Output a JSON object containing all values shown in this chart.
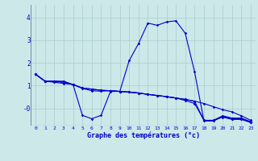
{
  "xlabel": "Graphe des températures (°c)",
  "bg_color": "#cce8e8",
  "grid_color": "#aacece",
  "line_color": "#0000cc",
  "text_color": "#0000cc",
  "xlim": [
    -0.5,
    23.5
  ],
  "ylim": [
    -0.75,
    4.55
  ],
  "yticks": [
    0,
    1,
    2,
    3,
    4
  ],
  "ytick_labels": [
    "-0",
    "1",
    "2",
    "3",
    "4"
  ],
  "xticks": [
    0,
    1,
    2,
    3,
    4,
    5,
    6,
    7,
    8,
    9,
    10,
    11,
    12,
    13,
    14,
    15,
    16,
    17,
    18,
    19,
    20,
    21,
    22,
    23
  ],
  "series": [
    {
      "x": [
        0,
        1,
        2,
        3,
        4,
        5,
        6,
        7,
        8,
        9,
        10,
        11,
        12,
        13,
        14,
        15,
        16,
        17,
        18,
        19,
        20,
        21,
        22,
        23
      ],
      "y": [
        1.5,
        1.2,
        1.2,
        1.2,
        1.05,
        -0.3,
        -0.45,
        -0.3,
        0.75,
        0.75,
        2.1,
        2.85,
        3.75,
        3.65,
        3.8,
        3.85,
        3.3,
        1.6,
        -0.55,
        -0.55,
        -0.35,
        -0.45,
        -0.45,
        -0.6
      ]
    },
    {
      "x": [
        0,
        1,
        2,
        3,
        4,
        5,
        6,
        7,
        8,
        9,
        10,
        11,
        12,
        13,
        14,
        15,
        16,
        17,
        18,
        19,
        20,
        21,
        22,
        23
      ],
      "y": [
        1.5,
        1.2,
        1.2,
        1.15,
        1.05,
        0.9,
        0.85,
        0.8,
        0.78,
        0.75,
        0.72,
        0.68,
        0.62,
        0.57,
        0.52,
        0.46,
        0.4,
        0.32,
        0.22,
        0.08,
        -0.05,
        -0.15,
        -0.32,
        -0.52
      ]
    },
    {
      "x": [
        0,
        1,
        2,
        3,
        4,
        5,
        6,
        7,
        8,
        9,
        10,
        11,
        12,
        13,
        14,
        15,
        16,
        17,
        18,
        19,
        20,
        21,
        22,
        23
      ],
      "y": [
        1.5,
        1.2,
        1.2,
        1.15,
        1.05,
        0.9,
        0.85,
        0.8,
        0.78,
        0.75,
        0.72,
        0.68,
        0.62,
        0.57,
        0.52,
        0.46,
        0.4,
        0.32,
        -0.52,
        -0.52,
        -0.32,
        -0.42,
        -0.42,
        -0.58
      ]
    },
    {
      "x": [
        0,
        1,
        2,
        3,
        4,
        5,
        6,
        7,
        8,
        9,
        10,
        11,
        12,
        13,
        14,
        15,
        16,
        17,
        18,
        19,
        20,
        21,
        22,
        23
      ],
      "y": [
        1.5,
        1.2,
        1.15,
        1.1,
        1.05,
        0.88,
        0.78,
        0.76,
        0.78,
        0.75,
        0.72,
        0.68,
        0.62,
        0.57,
        0.52,
        0.46,
        0.35,
        0.22,
        -0.52,
        -0.52,
        -0.38,
        -0.48,
        -0.48,
        -0.62
      ]
    }
  ]
}
